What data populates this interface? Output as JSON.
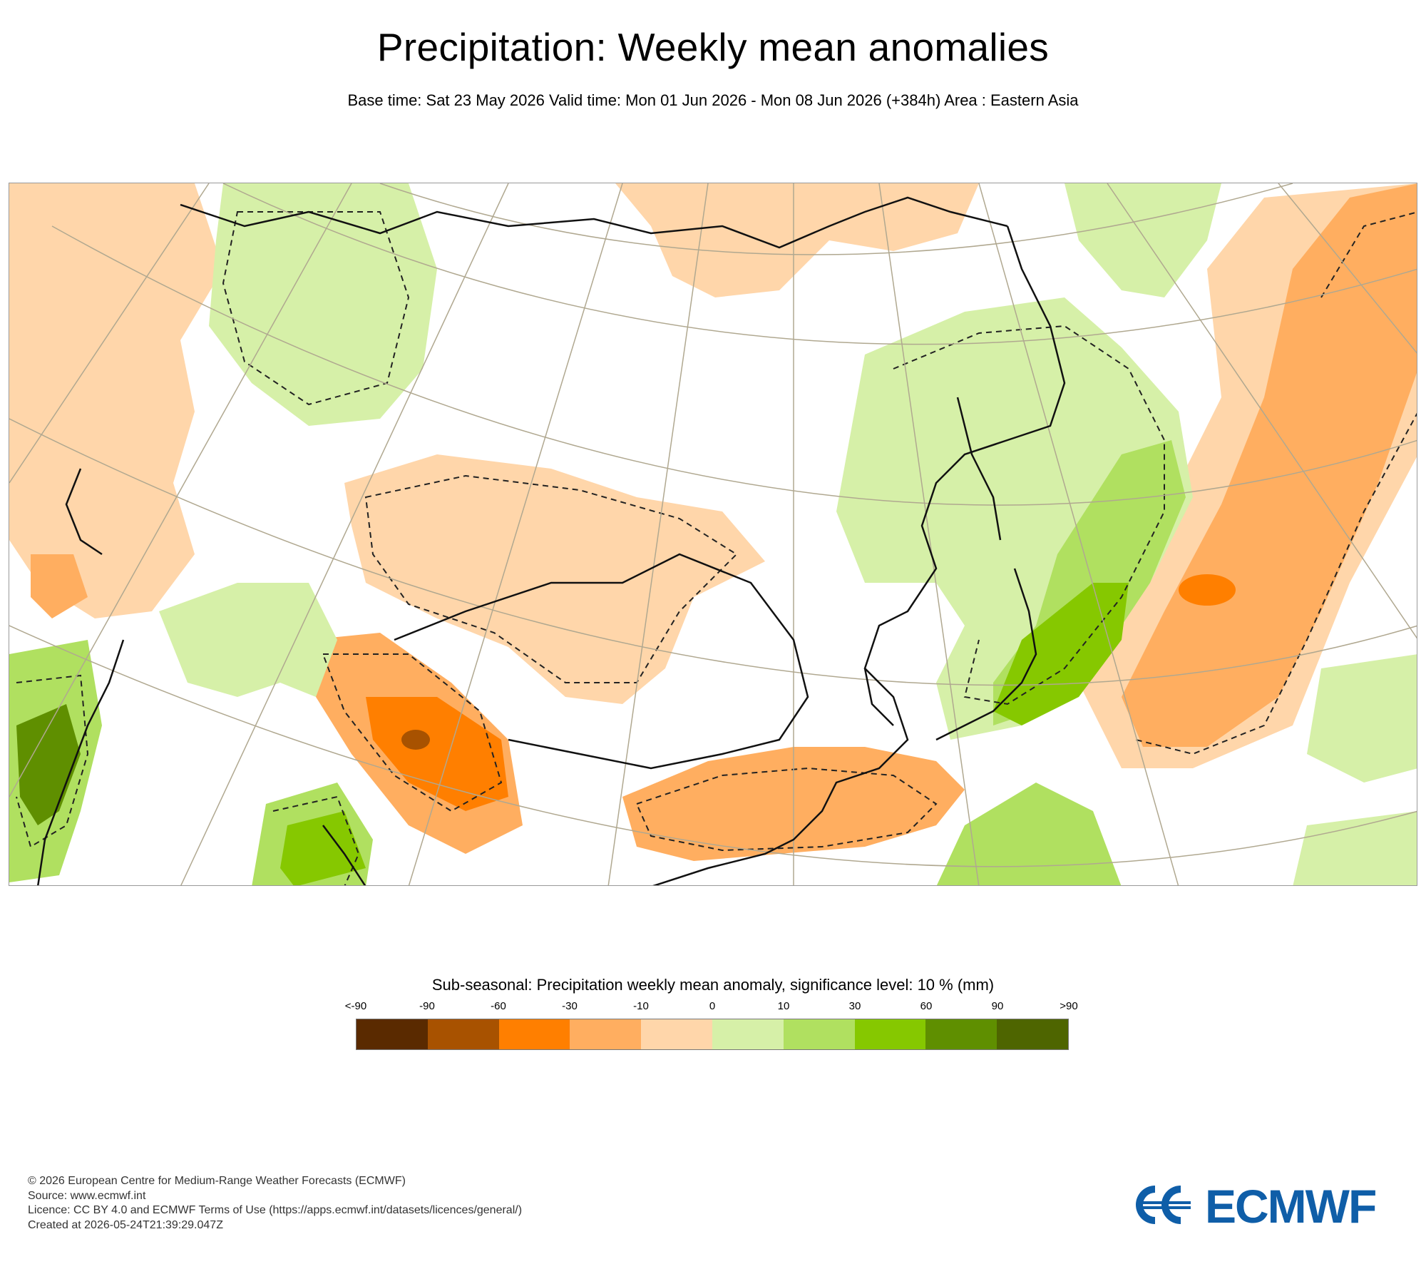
{
  "title": "Precipitation: Weekly mean anomalies",
  "subtitle": "Base time: Sat 23 May 2026 Valid time: Mon 01 Jun 2026 - Mon 08 Jun 2026 (+384h) Area : Eastern Asia",
  "legend": {
    "title": "Sub-seasonal: Precipitation weekly mean anomaly, significance level: 10 % (mm)",
    "ticks": [
      "<-90",
      "-90",
      "-60",
      "-30",
      "-10",
      "0",
      "10",
      "30",
      "60",
      "90",
      ">90"
    ],
    "colors": [
      "#5a2a00",
      "#a85200",
      "#ff7f00",
      "#ffae60",
      "#ffd6aa",
      "#d6f0a8",
      "#b0e060",
      "#86c800",
      "#5f8f00",
      "#4e6500"
    ]
  },
  "footer": {
    "line1": "© 2026 European Centre for Medium-Range Weather Forecasts (ECMWF)",
    "line2": "Source: www.ecmwf.int",
    "line3": "Licence: CC BY 4.0 and ECMWF Terms of Use (https://apps.ecmwf.int/datasets/licences/general/)",
    "line4": "Created at 2026-05-24T21:39:29.047Z"
  },
  "logo": {
    "text": "ECMWF",
    "color": "#0f5ea8"
  }
}
